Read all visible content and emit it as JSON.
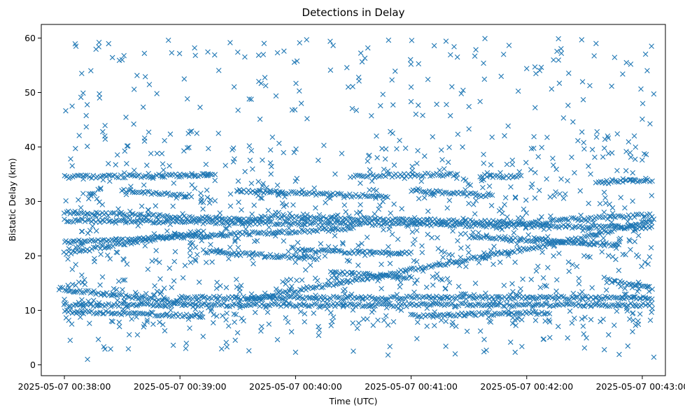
{
  "chart_data": {
    "type": "scatter",
    "title": "Detections in Delay",
    "xlabel": "Time (UTC)",
    "ylabel": "Bistatic Delay (km)",
    "marker": "x",
    "color": "#1f77b4",
    "xlim_minutes": [
      -0.2,
      5.2
    ],
    "ylim": [
      -2,
      62.5
    ],
    "x_ticks": [
      {
        "value": 0,
        "label": "2025-05-07 00:38:00"
      },
      {
        "value": 1,
        "label": "2025-05-07 00:39:00"
      },
      {
        "value": 2,
        "label": "2025-05-07 00:40:00"
      },
      {
        "value": 3,
        "label": "2025-05-07 00:41:00"
      },
      {
        "value": 4,
        "label": "2025-05-07 00:42:00"
      },
      {
        "value": 5,
        "label": "2025-05-07 00:43:00"
      }
    ],
    "y_ticks": [
      0,
      10,
      20,
      30,
      40,
      50,
      60
    ],
    "x_range_data_minutes": [
      -0.05,
      5.1
    ],
    "series": [
      {
        "name": "detections",
        "note": "x = minutes after 00:38:00 UTC, y = bistatic delay in km",
        "scatter_points": [
          [
            0.0,
            12.0
          ],
          [
            0.05,
            4.5
          ],
          [
            0.1,
            58.5
          ],
          [
            0.15,
            53.5
          ],
          [
            0.2,
            1.0
          ],
          [
            0.3,
            59.2
          ],
          [
            0.35,
            42.0
          ],
          [
            0.4,
            2.9
          ],
          [
            0.5,
            56.0
          ],
          [
            0.55,
            40.2
          ],
          [
            0.6,
            44.2
          ],
          [
            0.7,
            52.9
          ],
          [
            0.8,
            49.8
          ],
          [
            0.9,
            59.6
          ],
          [
            1.0,
            35.0
          ],
          [
            1.05,
            3.0
          ],
          [
            1.1,
            42.9
          ],
          [
            1.2,
            5.2
          ],
          [
            1.3,
            56.9
          ],
          [
            1.4,
            4.1
          ],
          [
            1.5,
            57.4
          ],
          [
            1.6,
            40.2
          ],
          [
            1.7,
            6.2
          ],
          [
            1.8,
            41.8
          ],
          [
            1.9,
            57.6
          ],
          [
            2.0,
            2.3
          ],
          [
            2.05,
            48.0
          ],
          [
            2.1,
            45.2
          ],
          [
            2.2,
            5.4
          ],
          [
            2.3,
            59.4
          ],
          [
            2.4,
            38.8
          ],
          [
            2.5,
            2.5
          ],
          [
            2.6,
            56.3
          ],
          [
            2.7,
            42.0
          ],
          [
            2.8,
            1.8
          ],
          [
            2.9,
            41.2
          ],
          [
            3.0,
            51.0
          ],
          [
            3.05,
            4.8
          ],
          [
            3.1,
            45.8
          ],
          [
            3.2,
            58.6
          ],
          [
            3.3,
            3.4
          ],
          [
            3.4,
            56.5
          ],
          [
            3.5,
            43.3
          ],
          [
            3.6,
            6.2
          ],
          [
            3.7,
            41.8
          ],
          [
            3.8,
            57.0
          ],
          [
            3.9,
            2.3
          ],
          [
            4.0,
            54.4
          ],
          [
            4.1,
            38.2
          ],
          [
            4.2,
            5.0
          ],
          [
            4.3,
            57.2
          ],
          [
            4.4,
            44.6
          ],
          [
            4.5,
            3.1
          ],
          [
            4.6,
            59.0
          ],
          [
            4.7,
            42.0
          ],
          [
            4.8,
            1.9
          ],
          [
            4.9,
            55.2
          ],
          [
            5.0,
            45.1
          ],
          [
            5.05,
            18.5
          ],
          [
            5.08,
            58.5
          ],
          [
            5.1,
            1.4
          ]
        ],
        "tracks": [
          {
            "from": [
              -0.05,
              14.0
            ],
            "to": [
              1.0,
              11.5
            ]
          },
          {
            "from": [
              0.0,
              11.0
            ],
            "to": [
              5.1,
              11.0
            ]
          },
          {
            "from": [
              0.0,
              9.8
            ],
            "to": [
              1.2,
              9.0
            ]
          },
          {
            "from": [
              1.0,
              12.3
            ],
            "to": [
              5.1,
              12.3
            ]
          },
          {
            "from": [
              1.6,
              12.0
            ],
            "to": [
              4.3,
              22.5
            ]
          },
          {
            "from": [
              4.3,
              22.5
            ],
            "to": [
              5.1,
              26.5
            ]
          },
          {
            "from": [
              2.3,
              17.0
            ],
            "to": [
              3.0,
              16.0
            ]
          },
          {
            "from": [
              4.7,
              15.5
            ],
            "to": [
              5.1,
              14.0
            ]
          },
          {
            "from": [
              3.0,
              9.0
            ],
            "to": [
              4.2,
              9.6
            ]
          },
          {
            "from": [
              0.0,
              20.5
            ],
            "to": [
              1.2,
              24.5
            ]
          },
          {
            "from": [
              0.0,
              22.5
            ],
            "to": [
              2.5,
              25.0
            ]
          },
          {
            "from": [
              0.0,
              26.5
            ],
            "to": [
              5.1,
              25.2
            ]
          },
          {
            "from": [
              0.0,
              28.0
            ],
            "to": [
              1.7,
              26.5
            ]
          },
          {
            "from": [
              1.7,
              27.2
            ],
            "to": [
              4.2,
              26.0
            ]
          },
          {
            "from": [
              4.2,
              26.5
            ],
            "to": [
              5.1,
              27.5
            ]
          },
          {
            "from": [
              0.0,
              34.5
            ],
            "to": [
              1.3,
              34.8
            ]
          },
          {
            "from": [
              2.5,
              34.6
            ],
            "to": [
              3.4,
              35.0
            ]
          },
          {
            "from": [
              4.6,
              33.5
            ],
            "to": [
              5.1,
              33.8
            ]
          },
          {
            "from": [
              1.5,
              32.0
            ],
            "to": [
              2.8,
              30.8
            ]
          },
          {
            "from": [
              3.0,
              32.0
            ],
            "to": [
              3.7,
              31.0
            ]
          },
          {
            "from": [
              1.2,
              20.8
            ],
            "to": [
              2.2,
              19.5
            ]
          },
          {
            "from": [
              3.5,
              23.5
            ],
            "to": [
              4.8,
              22.0
            ]
          },
          {
            "from": [
              0.5,
              32.0
            ],
            "to": [
              1.1,
              31.0
            ]
          },
          {
            "from": [
              2.0,
              21.0
            ],
            "to": [
              3.0,
              20.5
            ]
          },
          {
            "from": [
              3.6,
              34.7
            ],
            "to": [
              3.95,
              34.5
            ]
          }
        ],
        "background_clusters": [
          {
            "x_range": [
              0.0,
              5.1
            ],
            "y_range": [
              2,
              60
            ],
            "count": 480
          },
          {
            "x_range": [
              0.0,
              5.1
            ],
            "y_range": [
              7,
              16
            ],
            "count": 260
          },
          {
            "x_range": [
              0.0,
              5.1
            ],
            "y_range": [
              18,
              32
            ],
            "count": 320
          },
          {
            "x_range": [
              0.0,
              5.1
            ],
            "y_range": [
              32,
              40
            ],
            "count": 110
          }
        ]
      }
    ]
  }
}
